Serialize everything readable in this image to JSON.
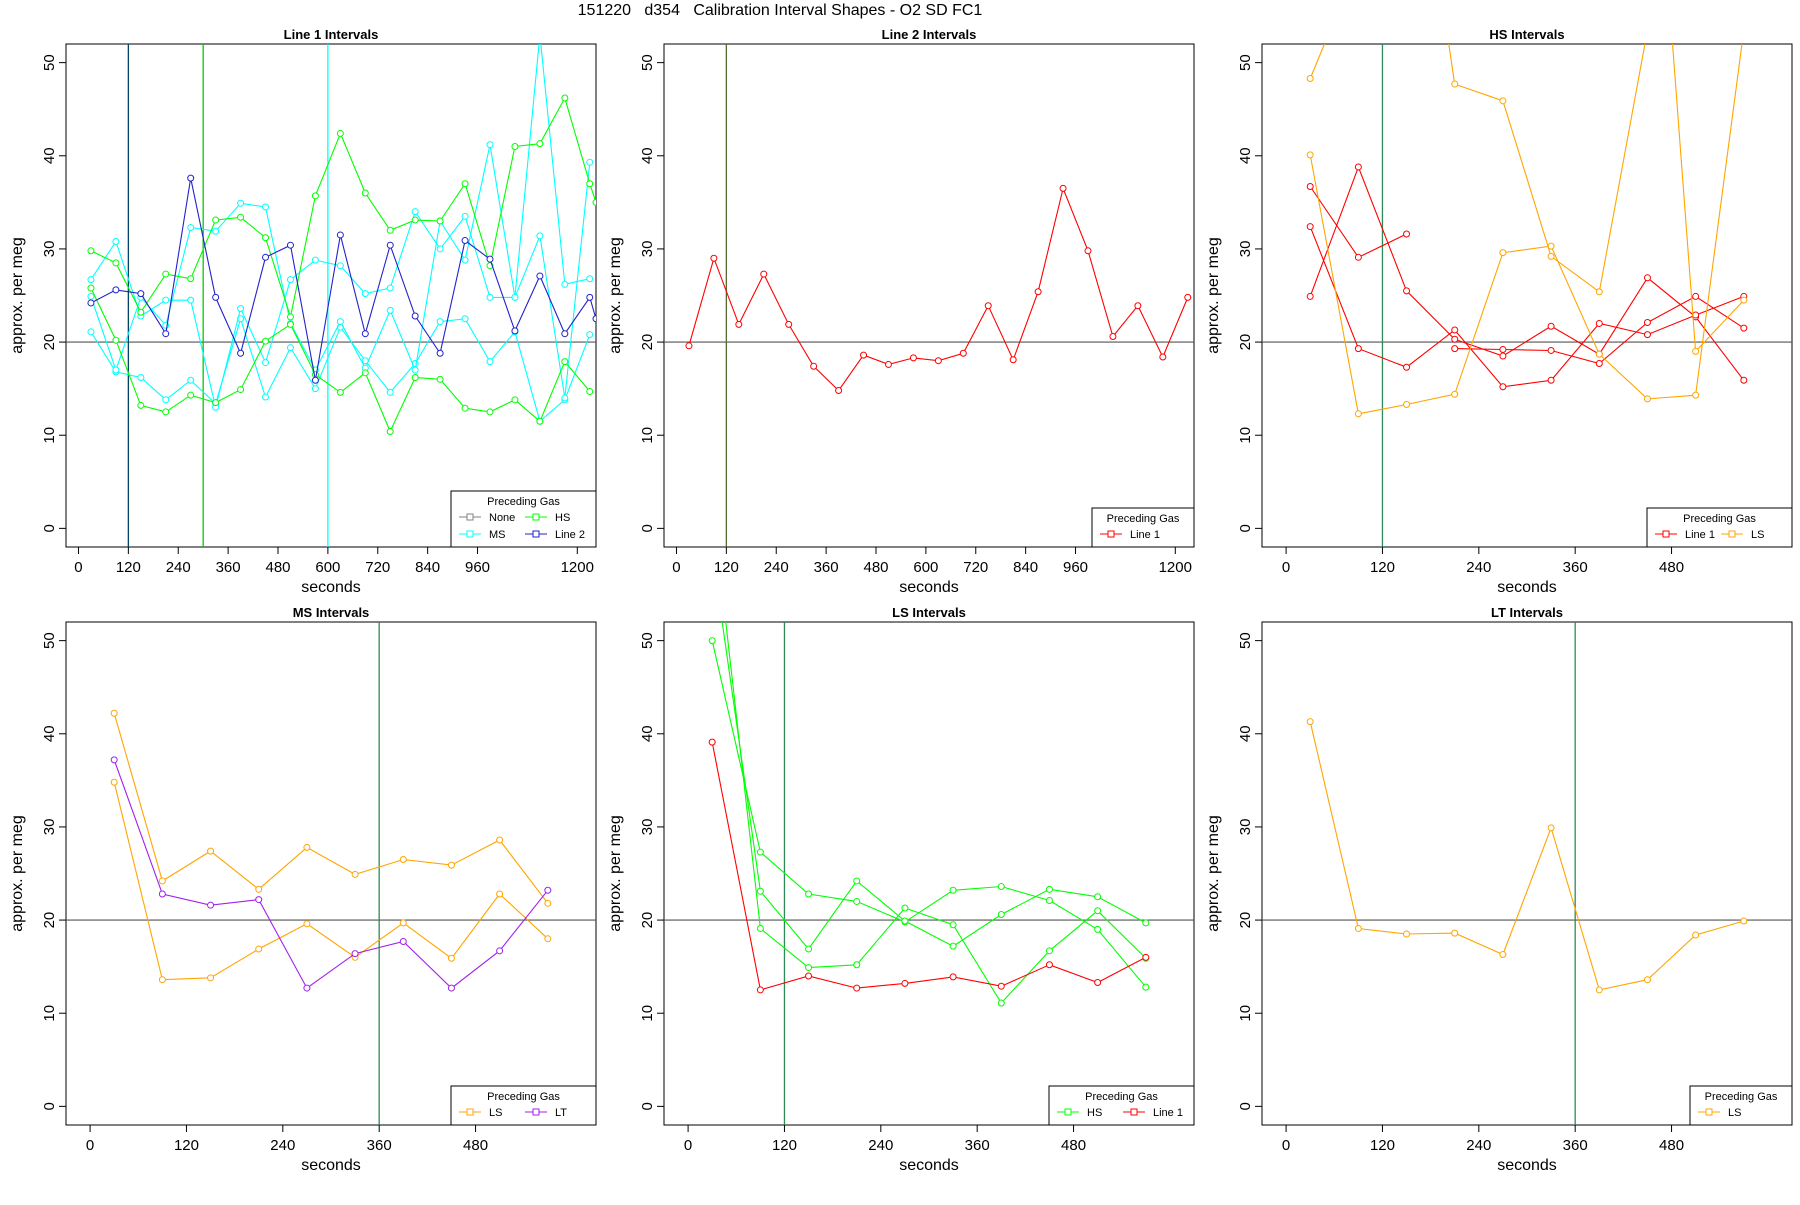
{
  "title": "151220   d354   Calibration Interval Shapes - O2 SD FC1",
  "ylabel": "approx. per meg",
  "xlabel": "seconds",
  "colors": {
    "None": "#808080",
    "MS": "#00ffff",
    "HS": "#00ff00",
    "Line 2": "#2222cc",
    "Line 1": "#ff0000",
    "LS": "#ffa500",
    "LT": "#a020f0",
    "axis": "#000000",
    "refline": "#555555"
  },
  "chart_data": [
    {
      "type": "line",
      "title": "Line 1 Intervals",
      "xlim": [
        -30,
        1245
      ],
      "ylim": [
        -2,
        52
      ],
      "xticks": [
        0,
        120,
        240,
        360,
        480,
        600,
        720,
        840,
        960,
        1200
      ],
      "yticks": [
        0,
        10,
        20,
        30,
        40,
        50
      ],
      "hline": 20,
      "vlines": [
        {
          "x": 120,
          "color": "#004466"
        },
        {
          "x": 300,
          "color": "#00cc00"
        },
        {
          "x": 600,
          "color": "#00ffff"
        }
      ],
      "legend": {
        "title": "Preceding Gas",
        "entries": [
          "None",
          "HS",
          "MS",
          "Line 2"
        ],
        "columns": 2,
        "position": "bottom-right"
      },
      "series": [
        {
          "name": "MS",
          "x": [
            30,
            90,
            150,
            210,
            270,
            330,
            390,
            450,
            510,
            570,
            630,
            690,
            750,
            810,
            870,
            930,
            990,
            1050,
            1110,
            1170,
            1230
          ],
          "y": [
            21.1,
            16.8,
            16.2,
            13.8,
            15.9,
            13.4,
            22.5,
            14.1,
            19.4,
            15.0,
            21.6,
            18.0,
            14.6,
            17.7,
            22.2,
            22.5,
            17.9,
            21.1,
            11.5,
            13.8,
            20.8
          ]
        },
        {
          "name": "MS",
          "x": [
            30,
            90,
            150,
            210,
            270,
            330,
            390,
            450,
            510,
            570,
            630,
            690,
            750,
            810,
            870,
            930,
            990,
            1050,
            1110,
            1170,
            1230
          ],
          "y": [
            26.7,
            30.8,
            22.8,
            24.5,
            24.5,
            13.0,
            23.6,
            17.8,
            26.7,
            28.8,
            28.2,
            25.2,
            25.8,
            34.0,
            30.0,
            33.5,
            24.8,
            24.8,
            53.0,
            26.2,
            26.8
          ]
        },
        {
          "name": "MS",
          "x": [
            30,
            90,
            150,
            210,
            270,
            330,
            390,
            450,
            510,
            570,
            630,
            690,
            750,
            810,
            870,
            930,
            990,
            1050,
            1110,
            1170,
            1230
          ],
          "y": [
            24.9,
            17.0,
            24.8,
            21.8,
            32.3,
            31.9,
            34.9,
            34.5,
            22.0,
            17.0,
            22.2,
            17.2,
            23.4,
            17.0,
            33.0,
            28.8,
            41.2,
            24.8,
            31.4,
            14.0,
            39.3
          ]
        },
        {
          "name": "HS",
          "x": [
            30,
            90,
            150,
            210,
            270,
            330,
            390,
            450,
            510,
            570,
            630,
            690,
            750,
            810,
            870,
            930,
            990,
            1050,
            1110,
            1170,
            1230,
            1245
          ],
          "y": [
            29.8,
            28.5,
            23.2,
            27.3,
            26.8,
            33.1,
            33.4,
            31.2,
            22.7,
            35.7,
            42.4,
            36.0,
            32.0,
            33.1,
            33.0,
            37.0,
            28.2,
            41.0,
            41.3,
            46.2,
            37.0,
            35.0
          ]
        },
        {
          "name": "HS",
          "x": [
            30,
            90,
            150,
            210,
            270,
            330,
            390,
            450,
            510,
            570,
            630,
            690,
            750,
            810,
            870,
            930,
            990,
            1050,
            1110,
            1170,
            1230
          ],
          "y": [
            25.8,
            20.2,
            13.2,
            12.5,
            14.3,
            13.5,
            14.9,
            20.1,
            21.9,
            16.5,
            14.6,
            16.7,
            10.4,
            16.2,
            16.0,
            12.9,
            12.5,
            13.8,
            11.5,
            17.9,
            14.7
          ]
        },
        {
          "name": "Line 2",
          "x": [
            30,
            90,
            150,
            210,
            270,
            330,
            390,
            450,
            510,
            570,
            630,
            690,
            750,
            810,
            870,
            930,
            990,
            1050,
            1110,
            1170,
            1230,
            1245
          ],
          "y": [
            24.2,
            25.6,
            25.2,
            20.9,
            37.6,
            24.8,
            18.8,
            29.1,
            30.4,
            15.9,
            31.5,
            20.9,
            30.4,
            22.8,
            18.8,
            30.9,
            28.9,
            21.2,
            27.1,
            20.9,
            24.8,
            22.5
          ]
        }
      ]
    },
    {
      "type": "line",
      "title": "Line 2 Intervals",
      "xlim": [
        -30,
        1245
      ],
      "ylim": [
        -2,
        52
      ],
      "xticks": [
        0,
        120,
        240,
        360,
        480,
        600,
        720,
        840,
        960,
        1200
      ],
      "yticks": [
        0,
        10,
        20,
        30,
        40,
        50
      ],
      "hline": 20,
      "vlines": [
        {
          "x": 120,
          "color": "#556b2f"
        }
      ],
      "legend": {
        "title": "Preceding Gas",
        "entries": [
          "Line 1"
        ],
        "columns": 1,
        "position": "bottom-right"
      },
      "series": [
        {
          "name": "Line 1",
          "x": [
            30,
            90,
            150,
            210,
            270,
            330,
            390,
            450,
            510,
            570,
            630,
            690,
            750,
            810,
            870,
            930,
            990,
            1050,
            1110,
            1170,
            1230
          ],
          "y": [
            19.6,
            29.0,
            21.9,
            27.3,
            21.9,
            17.4,
            14.8,
            18.6,
            17.6,
            18.3,
            18.0,
            18.8,
            23.9,
            18.1,
            25.4,
            36.5,
            29.8,
            20.6,
            23.9,
            18.4,
            24.8
          ]
        }
      ]
    },
    {
      "type": "line",
      "title": "HS Intervals",
      "xlim": [
        -30,
        630
      ],
      "ylim": [
        -2,
        52
      ],
      "xticks": [
        0,
        120,
        240,
        360,
        480
      ],
      "yticks": [
        0,
        10,
        20,
        30,
        40,
        50
      ],
      "hline": 20,
      "vlines": [
        {
          "x": 120,
          "color": "#2e8b57"
        }
      ],
      "legend": {
        "title": "Preceding Gas",
        "entries": [
          "Line 1",
          "LS"
        ],
        "columns": 2,
        "position": "bottom-right"
      },
      "series": [
        {
          "name": "Line 1",
          "x": [
            30,
            90,
            150,
            210,
            270,
            330,
            390,
            450,
            510,
            570
          ],
          "y": [
            24.9,
            38.8,
            25.5,
            20.3,
            18.5,
            21.7,
            18.7,
            26.9,
            22.7,
            15.9
          ]
        },
        {
          "name": "Line 1",
          "x": [
            30,
            90,
            150,
            210,
            270,
            330,
            390,
            450,
            510,
            570
          ],
          "y": [
            32.4,
            19.3,
            17.3,
            21.3,
            15.2,
            15.9,
            22.0,
            20.8,
            22.9,
            24.9
          ]
        },
        {
          "name": "Line 1",
          "x": [
            30,
            90,
            150
          ],
          "y": [
            36.7,
            29.1,
            31.6
          ]
        },
        {
          "name": "Line 1",
          "x": [
            210,
            270,
            330,
            390,
            450,
            510,
            570
          ],
          "y": [
            19.3,
            19.2,
            19.1,
            17.7,
            22.1,
            24.9,
            21.5
          ]
        },
        {
          "name": "LS",
          "x": [
            30,
            90,
            150,
            210,
            270,
            330,
            390,
            450,
            510,
            570
          ],
          "y": [
            40.1,
            12.3,
            13.3,
            14.4,
            29.6,
            30.3,
            18.7,
            13.9,
            14.3,
            53.5
          ]
        },
        {
          "name": "LS",
          "x": [
            30,
            55
          ],
          "y": [
            48.3,
            53.5
          ]
        },
        {
          "name": "LS",
          "x": [
            200,
            210,
            270,
            330,
            390,
            450,
            470
          ],
          "y": [
            53.5,
            47.7,
            45.9,
            29.2,
            25.4,
            53.5,
            53.5
          ]
        },
        {
          "name": "LS",
          "x": [
            480,
            510,
            570
          ],
          "y": [
            53.5,
            19.0,
            24.5
          ]
        }
      ]
    },
    {
      "type": "line",
      "title": "MS Intervals",
      "xlim": [
        -30,
        630
      ],
      "ylim": [
        -2,
        52
      ],
      "xticks": [
        0,
        120,
        240,
        360,
        480
      ],
      "yticks": [
        0,
        10,
        20,
        30,
        40,
        50
      ],
      "hline": 20,
      "vlines": [
        {
          "x": 360,
          "color": "#2e8b57"
        }
      ],
      "legend": {
        "title": "Preceding Gas",
        "entries": [
          "LS",
          "LT"
        ],
        "columns": 2,
        "position": "bottom-right"
      },
      "series": [
        {
          "name": "LS",
          "x": [
            30,
            90,
            150,
            210,
            270,
            330,
            390,
            450,
            510,
            570
          ],
          "y": [
            42.2,
            24.2,
            27.4,
            23.3,
            27.8,
            24.9,
            26.5,
            25.9,
            28.6,
            21.8
          ]
        },
        {
          "name": "LS",
          "x": [
            30,
            90,
            150,
            210,
            270,
            330,
            390,
            450,
            510,
            570
          ],
          "y": [
            34.8,
            13.6,
            13.8,
            16.9,
            19.6,
            16.0,
            19.7,
            15.9,
            22.8,
            18.0
          ]
        },
        {
          "name": "LT",
          "x": [
            30,
            90,
            150,
            210,
            270,
            330,
            390,
            450,
            510,
            570
          ],
          "y": [
            37.2,
            22.8,
            21.6,
            22.2,
            12.7,
            16.4,
            17.7,
            12.7,
            16.7,
            23.2
          ]
        }
      ]
    },
    {
      "type": "line",
      "title": "LS Intervals",
      "xlim": [
        -30,
        630
      ],
      "ylim": [
        -2,
        52
      ],
      "xticks": [
        0,
        120,
        240,
        360,
        480
      ],
      "yticks": [
        0,
        10,
        20,
        30,
        40,
        50
      ],
      "hline": 20,
      "vlines": [
        {
          "x": 120,
          "color": "#2e8b57"
        }
      ],
      "legend": {
        "title": "Preceding Gas",
        "entries": [
          "HS",
          "Line 1"
        ],
        "columns": 2,
        "position": "bottom-right"
      },
      "series": [
        {
          "name": "HS",
          "x": [
            30,
            90,
            150,
            210,
            270,
            330,
            390,
            450,
            510,
            570
          ],
          "y": [
            50.0,
            27.3,
            22.8,
            22.0,
            19.8,
            23.2,
            23.6,
            22.1,
            19.0,
            12.8
          ]
        },
        {
          "name": "HS",
          "x": [
            40,
            90,
            150,
            210,
            270,
            330,
            390,
            450,
            510,
            570
          ],
          "y": [
            53.5,
            23.1,
            16.9,
            24.2,
            19.9,
            17.2,
            20.6,
            23.3,
            22.5,
            19.7
          ]
        },
        {
          "name": "HS",
          "x": [
            45,
            90,
            150,
            210,
            270,
            330,
            390,
            450,
            510,
            570
          ],
          "y": [
            53.5,
            19.1,
            14.9,
            15.2,
            21.3,
            19.5,
            11.1,
            16.7,
            21.0,
            15.9
          ]
        },
        {
          "name": "Line 1",
          "x": [
            30,
            90,
            150,
            210,
            270,
            330,
            390,
            450,
            510,
            570
          ],
          "y": [
            39.1,
            12.5,
            14.0,
            12.7,
            13.2,
            13.9,
            12.9,
            15.2,
            13.3,
            16.0
          ]
        }
      ]
    },
    {
      "type": "line",
      "title": "LT Intervals",
      "xlim": [
        -30,
        630
      ],
      "ylim": [
        -2,
        52
      ],
      "xticks": [
        0,
        120,
        240,
        360,
        480
      ],
      "yticks": [
        0,
        10,
        20,
        30,
        40,
        50
      ],
      "hline": 20,
      "vlines": [
        {
          "x": 360,
          "color": "#2e8b57"
        }
      ],
      "legend": {
        "title": "Preceding Gas",
        "entries": [
          "LS"
        ],
        "columns": 1,
        "position": "bottom-right"
      },
      "series": [
        {
          "name": "LS",
          "x": [
            30,
            90,
            150,
            210,
            270,
            330,
            390,
            450,
            510,
            570
          ],
          "y": [
            41.3,
            19.1,
            18.5,
            18.6,
            16.3,
            29.9,
            12.5,
            13.6,
            18.4,
            19.9
          ]
        }
      ]
    }
  ]
}
